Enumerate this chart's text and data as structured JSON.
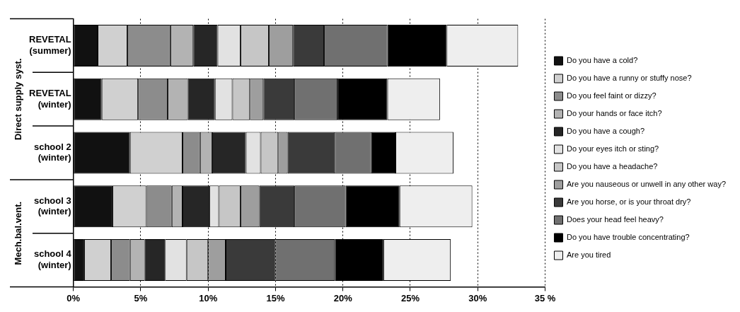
{
  "chart_data": {
    "type": "bar",
    "orientation": "horizontal",
    "stacked": true,
    "categories": [
      "REVETAL (summer)",
      "REVETAL (winter)",
      "school 2 (winter)",
      "school 3 (winter)",
      "school 4 (winter)"
    ],
    "series": [
      {
        "name": "Do you have a cold?",
        "color": "#111111",
        "values": [
          1.8,
          2.1,
          4.2,
          2.9,
          0.8
        ]
      },
      {
        "name": "Do you have a runny or stuffy nose?",
        "color": "#d0d0d0",
        "values": [
          2.2,
          2.7,
          3.9,
          2.5,
          2.0
        ]
      },
      {
        "name": "Do you feel faint or dizzy?",
        "color": "#8c8c8c",
        "values": [
          3.2,
          2.2,
          1.3,
          1.9,
          1.4
        ]
      },
      {
        "name": "Do your hands or face itch?",
        "color": "#b3b3b3",
        "values": [
          1.7,
          1.5,
          0.9,
          0.8,
          1.1
        ]
      },
      {
        "name": "Do you have a cough?",
        "color": "#262626",
        "values": [
          1.8,
          2.0,
          2.5,
          2.0,
          1.5
        ]
      },
      {
        "name": "Do your eyes itch or sting?",
        "color": "#e2e2e2",
        "values": [
          1.7,
          1.3,
          1.1,
          0.7,
          1.6
        ]
      },
      {
        "name": "Do you have a headache?",
        "color": "#c6c6c6",
        "values": [
          2.1,
          1.3,
          1.3,
          1.6,
          1.6
        ]
      },
      {
        "name": "Are you nauseous or unwell in any other way?",
        "color": "#9e9e9e",
        "values": [
          1.8,
          1.0,
          0.7,
          1.4,
          1.3
        ]
      },
      {
        "name": "Are you horse, or is your throat dry?",
        "color": "#3a3a3a",
        "values": [
          2.3,
          2.3,
          3.5,
          2.6,
          3.7
        ]
      },
      {
        "name": "Does your head feel heavy?",
        "color": "#707070",
        "values": [
          4.7,
          3.2,
          2.7,
          3.8,
          4.4
        ]
      },
      {
        "name": "Do you have trouble concentrating?",
        "color": "#000000",
        "values": [
          4.4,
          3.7,
          1.8,
          4.0,
          3.6
        ]
      },
      {
        "name": "Are you tired",
        "color": "#eeeeee",
        "values": [
          5.3,
          3.9,
          4.3,
          5.4,
          5.0
        ]
      }
    ],
    "xlim": [
      0,
      35
    ],
    "xticks": [
      {
        "value": 0,
        "label": "0%"
      },
      {
        "value": 5,
        "label": "5%"
      },
      {
        "value": 10,
        "label": "10%"
      },
      {
        "value": 15,
        "label": "15%"
      },
      {
        "value": 20,
        "label": "20%"
      },
      {
        "value": 25,
        "label": "25%"
      },
      {
        "value": 30,
        "label": "30%"
      },
      {
        "value": 35,
        "label": "35 %"
      }
    ],
    "grid": "x",
    "legend": "right",
    "annotations": [
      "Direct supply syst.",
      "Mech.bal.vent."
    ]
  }
}
